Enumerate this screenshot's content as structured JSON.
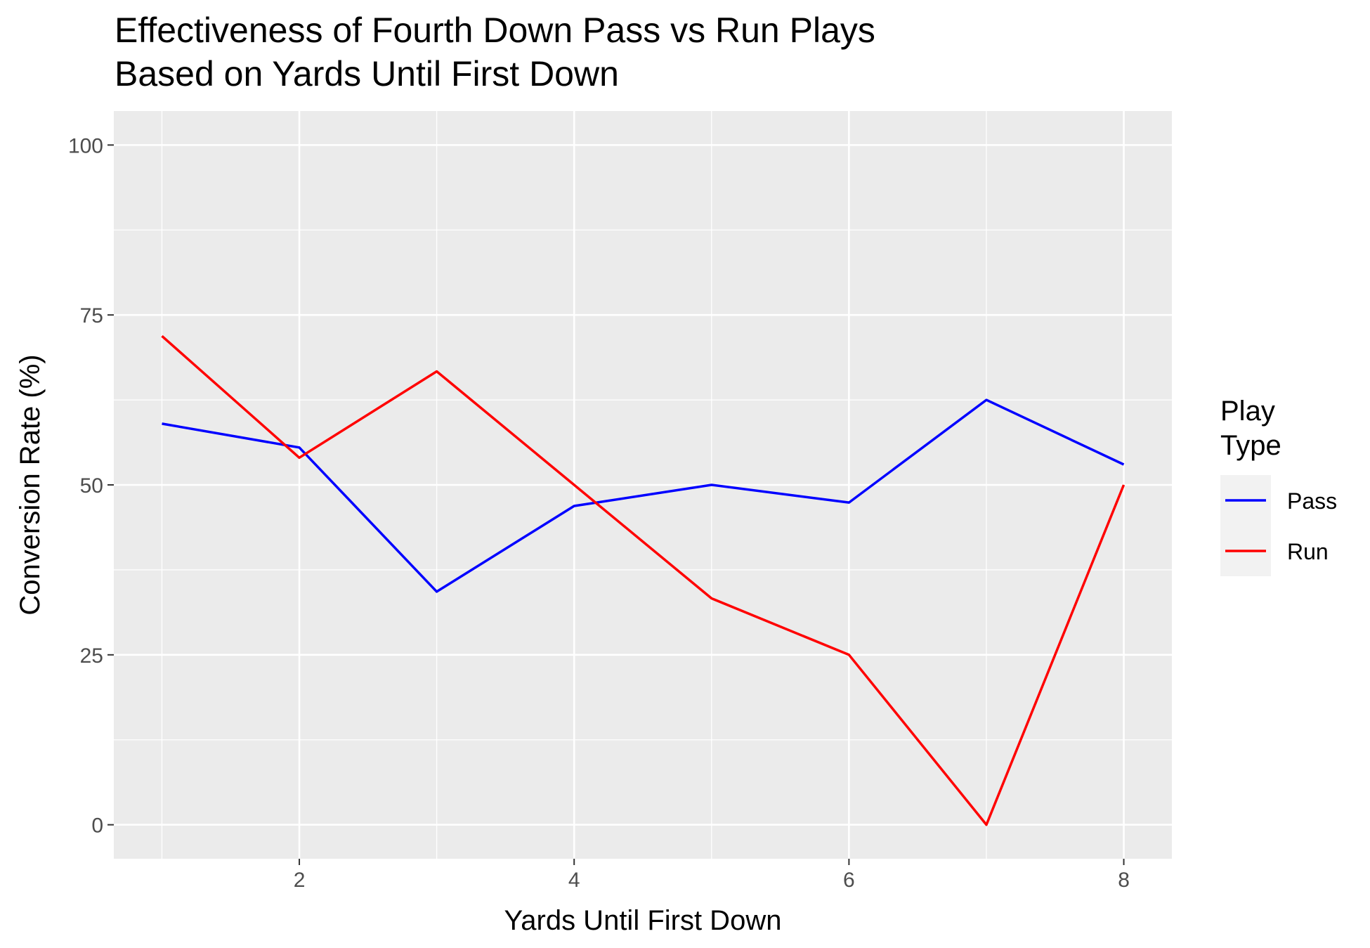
{
  "chart_data": {
    "type": "line",
    "title_lines": [
      "Effectiveness of Fourth Down Pass vs Run Plays",
      "Based on Yards Until First Down"
    ],
    "xlabel": "Yards Until First Down",
    "ylabel": "Conversion Rate (%)",
    "x": [
      1,
      2,
      3,
      4,
      5,
      6,
      7,
      8
    ],
    "xlim": [
      0.65,
      8.35
    ],
    "ylim": [
      -5,
      105
    ],
    "x_ticks": [
      2,
      4,
      6,
      8
    ],
    "x_tick_labels": [
      "2",
      "4",
      "6",
      "8"
    ],
    "y_ticks": [
      0,
      25,
      50,
      75,
      100
    ],
    "y_tick_labels": [
      "0",
      "25",
      "50",
      "75",
      "100"
    ],
    "grid": true,
    "legend": {
      "title_lines": [
        "Play",
        "Type"
      ],
      "position": "right"
    },
    "series": [
      {
        "name": "Pass",
        "color": "#0000ff",
        "values": [
          59,
          55.5,
          34.3,
          46.9,
          50,
          47.4,
          62.5,
          53
        ]
      },
      {
        "name": "Run",
        "color": "#ff0000",
        "values": [
          71.9,
          54,
          66.7,
          50,
          33.3,
          25,
          0,
          50
        ]
      }
    ],
    "colors": {
      "panel": "#ebebeb",
      "grid": "#ffffff",
      "legend_bg": "#f2f2f2",
      "tick": "#4d4d4d"
    }
  }
}
